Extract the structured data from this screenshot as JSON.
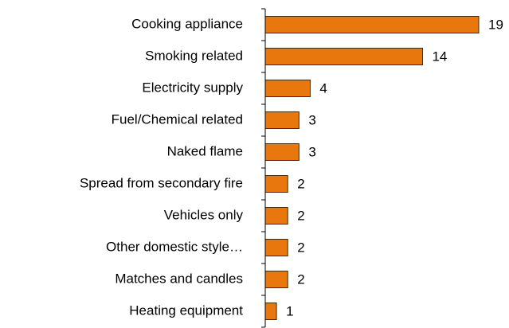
{
  "chart_data": {
    "type": "bar",
    "orientation": "horizontal",
    "categories": [
      "Cooking appliance",
      "Smoking related",
      "Electricity supply",
      "Fuel/Chemical related",
      "Naked flame",
      "Spread from secondary fire",
      "Vehicles only",
      "Other domestic style…",
      "Matches and candles",
      "Heating equipment"
    ],
    "values": [
      19,
      14,
      4,
      3,
      3,
      2,
      2,
      2,
      2,
      1
    ],
    "color": "#e8770e",
    "xlim": [
      0,
      19
    ]
  }
}
